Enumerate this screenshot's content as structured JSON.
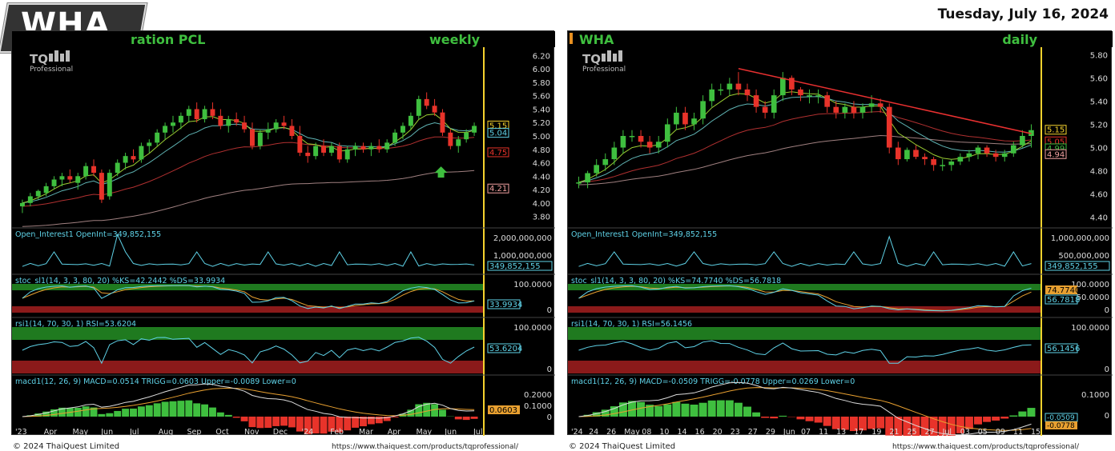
{
  "header": {
    "date": "Tuesday, July 16, 2024",
    "badge": "WHA"
  },
  "colors": {
    "up": "#3fbf3f",
    "down": "#e8332a",
    "ema_fast": "#9acd32",
    "ema_mid": "#5fb3b3",
    "ema_slow": "#b03030",
    "ema_long": "#a08080",
    "trend": "#e83030",
    "osc_line": "#5fd3e8",
    "signal": "#e8a030",
    "green_zone": "#1f7a1f",
    "red_zone": "#8b1a1a"
  },
  "weekly": {
    "title_left": "ration PCL",
    "title_right": "weekly",
    "logo": "TQ",
    "logo_sub": "Professional",
    "price_ticks": [
      "6.20",
      "6.00",
      "5.80",
      "5.60",
      "5.40",
      "5.20",
      "5.00",
      "4.80",
      "4.60",
      "4.40",
      "4.20",
      "4.00",
      "3.80"
    ],
    "price_tags": [
      {
        "v": "5.15",
        "c": "#f5d22e"
      },
      {
        "v": "5.04",
        "c": "#5fd3e8"
      },
      {
        "v": "4.75",
        "c": "#e8332a"
      },
      {
        "v": "4.21",
        "c": "#f0a0a0"
      }
    ],
    "oi_label": "Open_Interest1 OpenInt=349,852,155",
    "oi_ticks": [
      "2,000,000,000",
      "1,000,000,000"
    ],
    "oi_tag": "349,852,155",
    "stoc_label": "stoc_sl1(14, 3, 3, 80, 20) %KS=42.2442 %DS=33.9934",
    "stoc_ticks": [
      "100.0000",
      "0"
    ],
    "stoc_tag": "33.9934",
    "rsi_label": "rsi1(14, 70, 30, 1) RSI=53.6204",
    "rsi_ticks": [
      "100.0000",
      "0"
    ],
    "rsi_tag": "53.6204",
    "macd_label": "macd1(12, 26, 9) MACD=0.0514 TRIGG=0.0603 Upper=-0.0089 Lower=0",
    "macd_ticks": [
      "0.2000",
      "0.1000",
      "0"
    ],
    "macd_tag": "0.0603",
    "x_labels": [
      "'23",
      "Apr",
      "May",
      "Jun",
      "Jul",
      "Aug",
      "Sep",
      "Oct",
      "Nov",
      "Dec",
      "'24",
      "Feb",
      "Mar",
      "Apr",
      "May",
      "Jun",
      "Jul"
    ],
    "copyright": "© 2024 ThaiQuest Limited",
    "url": "https://www.thaiquest.com/products/tqprofessional/"
  },
  "daily": {
    "title_left": "WHA",
    "title_right": "daily",
    "logo": "TQ",
    "logo_sub": "Professional",
    "price_ticks": [
      "5.80",
      "5.60",
      "5.40",
      "5.20",
      "5.00",
      "4.80",
      "4.60",
      "4.40"
    ],
    "price_tags": [
      {
        "v": "5.15",
        "c": "#f5d22e"
      },
      {
        "v": "5.05",
        "c": "#e8332a"
      },
      {
        "v": "4.99",
        "c": "#3fbf3f"
      },
      {
        "v": "4.94",
        "c": "#f0a0a0"
      }
    ],
    "oi_label": "Open_Interest1 OpenInt=349,852,155",
    "oi_ticks": [
      "1,000,000,000",
      "500,000,000"
    ],
    "oi_tag": "349,852,155",
    "stoc_label": "stoc_sl1(14, 3, 3, 80, 20) %KS=74.7740 %DS=56.7818",
    "stoc_ticks": [
      "100.0000",
      "50.0000",
      "0"
    ],
    "stoc_tag1": "74.7740",
    "stoc_tag2": "56.7818",
    "rsi_label": "rsi1(14, 70, 30, 1) RSI=56.1456",
    "rsi_ticks": [
      "100.0000",
      "0"
    ],
    "rsi_tag": "56.1456",
    "macd_label": "macd1(12, 26, 9) MACD=-0.0509 TRIGG=-0.0778 Upper=0.0269 Lower=0",
    "macd_ticks": [
      "0.1000",
      "0"
    ],
    "macd_tag1": "-0.0509",
    "macd_tag2": "-0.0778",
    "x_labels": [
      "'24",
      "24",
      "26",
      "May",
      "08",
      "10",
      "14",
      "16",
      "20",
      "23",
      "27",
      "29",
      "Jun",
      "07",
      "11",
      "13",
      "17",
      "19",
      "21",
      "25",
      "27",
      "Jul",
      "03",
      "05",
      "09",
      "11",
      "15"
    ],
    "copyright": "© 2024 ThaiQuest Limited",
    "url": "https://www.thaiquest.com/products/tqprofessional/"
  },
  "chart_data": [
    {
      "type": "candlestick",
      "title": "ration PCL weekly",
      "ylim": [
        3.7,
        6.3
      ],
      "ohlc": [
        [
          3.95,
          4.05,
          3.85,
          4.0
        ],
        [
          4.0,
          4.15,
          3.95,
          4.1
        ],
        [
          4.1,
          4.2,
          4.05,
          4.18
        ],
        [
          4.15,
          4.3,
          4.1,
          4.25
        ],
        [
          4.25,
          4.4,
          4.2,
          4.35
        ],
        [
          4.35,
          4.45,
          4.25,
          4.4
        ],
        [
          4.4,
          4.5,
          4.3,
          4.35
        ],
        [
          4.3,
          4.45,
          4.2,
          4.4
        ],
        [
          4.4,
          4.6,
          4.35,
          4.55
        ],
        [
          4.55,
          4.65,
          4.4,
          4.45
        ],
        [
          4.45,
          4.5,
          4.0,
          4.05
        ],
        [
          4.1,
          4.5,
          4.05,
          4.45
        ],
        [
          4.45,
          4.65,
          4.4,
          4.6
        ],
        [
          4.6,
          4.75,
          4.5,
          4.7
        ],
        [
          4.7,
          4.8,
          4.6,
          4.65
        ],
        [
          4.65,
          4.9,
          4.6,
          4.85
        ],
        [
          4.85,
          4.95,
          4.75,
          4.9
        ],
        [
          4.9,
          5.1,
          4.85,
          5.05
        ],
        [
          5.05,
          5.2,
          4.95,
          5.15
        ],
        [
          5.15,
          5.3,
          5.05,
          5.2
        ],
        [
          5.2,
          5.35,
          5.1,
          5.3
        ],
        [
          5.3,
          5.45,
          5.2,
          5.4
        ],
        [
          5.4,
          5.5,
          5.2,
          5.25
        ],
        [
          5.25,
          5.45,
          5.2,
          5.4
        ],
        [
          5.4,
          5.5,
          5.25,
          5.3
        ],
        [
          5.3,
          5.4,
          5.1,
          5.15
        ],
        [
          5.15,
          5.3,
          5.05,
          5.25
        ],
        [
          5.25,
          5.35,
          5.15,
          5.2
        ],
        [
          5.2,
          5.3,
          5.05,
          5.1
        ],
        [
          5.1,
          5.2,
          4.8,
          4.85
        ],
        [
          4.85,
          5.1,
          4.8,
          5.05
        ],
        [
          5.05,
          5.2,
          4.95,
          5.1
        ],
        [
          5.1,
          5.25,
          5.05,
          5.2
        ],
        [
          5.2,
          5.3,
          5.1,
          5.15
        ],
        [
          5.15,
          5.25,
          4.95,
          5.0
        ],
        [
          5.0,
          5.15,
          4.7,
          4.75
        ],
        [
          4.75,
          4.85,
          4.6,
          4.7
        ],
        [
          4.7,
          4.9,
          4.65,
          4.85
        ],
        [
          4.85,
          4.95,
          4.7,
          4.75
        ],
        [
          4.75,
          4.9,
          4.7,
          4.85
        ],
        [
          4.85,
          4.9,
          4.6,
          4.65
        ],
        [
          4.65,
          4.85,
          4.6,
          4.8
        ],
        [
          4.8,
          4.9,
          4.7,
          4.85
        ],
        [
          4.85,
          4.9,
          4.75,
          4.8
        ],
        [
          4.8,
          4.9,
          4.7,
          4.85
        ],
        [
          4.85,
          4.95,
          4.75,
          4.8
        ],
        [
          4.8,
          4.95,
          4.75,
          4.9
        ],
        [
          4.9,
          5.1,
          4.85,
          5.05
        ],
        [
          5.05,
          5.2,
          4.95,
          5.15
        ],
        [
          5.15,
          5.35,
          5.1,
          5.3
        ],
        [
          5.3,
          5.6,
          5.25,
          5.55
        ],
        [
          5.55,
          5.65,
          5.4,
          5.45
        ],
        [
          5.45,
          5.55,
          5.3,
          5.35
        ],
        [
          5.35,
          5.4,
          5.0,
          5.05
        ],
        [
          5.05,
          5.1,
          4.8,
          4.85
        ],
        [
          4.85,
          5.0,
          4.75,
          4.95
        ],
        [
          4.95,
          5.1,
          4.9,
          5.05
        ],
        [
          5.05,
          5.2,
          5.0,
          5.15
        ]
      ]
    },
    {
      "type": "candlestick",
      "title": "WHA daily",
      "ylim": [
        4.35,
        5.85
      ],
      "ohlc": [
        [
          4.7,
          4.75,
          4.65,
          4.7
        ],
        [
          4.7,
          4.8,
          4.65,
          4.78
        ],
        [
          4.78,
          4.9,
          4.75,
          4.85
        ],
        [
          4.85,
          4.95,
          4.8,
          4.9
        ],
        [
          4.9,
          5.05,
          4.85,
          5.0
        ],
        [
          5.0,
          5.15,
          4.95,
          5.1
        ],
        [
          5.1,
          5.15,
          5.05,
          5.1
        ],
        [
          5.1,
          5.15,
          5.0,
          5.05
        ],
        [
          5.05,
          5.1,
          4.95,
          5.0
        ],
        [
          5.0,
          5.1,
          4.95,
          5.05
        ],
        [
          5.05,
          5.25,
          5.0,
          5.2
        ],
        [
          5.2,
          5.35,
          5.15,
          5.3
        ],
        [
          5.3,
          5.35,
          5.15,
          5.2
        ],
        [
          5.2,
          5.3,
          5.15,
          5.25
        ],
        [
          5.25,
          5.45,
          5.2,
          5.4
        ],
        [
          5.4,
          5.55,
          5.35,
          5.5
        ],
        [
          5.5,
          5.55,
          5.45,
          5.5
        ],
        [
          5.5,
          5.6,
          5.45,
          5.55
        ],
        [
          5.55,
          5.65,
          5.45,
          5.5
        ],
        [
          5.5,
          5.55,
          5.4,
          5.45
        ],
        [
          5.45,
          5.5,
          5.3,
          5.35
        ],
        [
          5.35,
          5.4,
          5.25,
          5.3
        ],
        [
          5.3,
          5.5,
          5.25,
          5.45
        ],
        [
          5.45,
          5.65,
          5.4,
          5.6
        ],
        [
          5.6,
          5.62,
          5.45,
          5.5
        ],
        [
          5.5,
          5.52,
          5.4,
          5.45
        ],
        [
          5.45,
          5.5,
          5.38,
          5.45
        ],
        [
          5.45,
          5.5,
          5.38,
          5.45
        ],
        [
          5.45,
          5.48,
          5.3,
          5.35
        ],
        [
          5.35,
          5.4,
          5.25,
          5.3
        ],
        [
          5.3,
          5.38,
          5.25,
          5.35
        ],
        [
          5.35,
          5.4,
          5.25,
          5.3
        ],
        [
          5.3,
          5.38,
          5.25,
          5.35
        ],
        [
          5.35,
          5.45,
          5.3,
          5.38
        ],
        [
          5.38,
          5.42,
          5.3,
          5.35
        ],
        [
          5.35,
          5.38,
          4.95,
          5.0
        ],
        [
          5.0,
          5.05,
          4.85,
          4.9
        ],
        [
          4.9,
          5.0,
          4.88,
          4.98
        ],
        [
          4.98,
          5.02,
          4.9,
          4.92
        ],
        [
          4.92,
          4.95,
          4.85,
          4.9
        ],
        [
          4.9,
          4.92,
          4.8,
          4.85
        ],
        [
          4.85,
          4.9,
          4.8,
          4.85
        ],
        [
          4.85,
          4.9,
          4.8,
          4.88
        ],
        [
          4.88,
          4.95,
          4.85,
          4.92
        ],
        [
          4.92,
          4.98,
          4.88,
          4.95
        ],
        [
          4.95,
          5.02,
          4.9,
          5.0
        ],
        [
          5.0,
          5.02,
          4.92,
          4.95
        ],
        [
          4.95,
          4.98,
          4.88,
          4.92
        ],
        [
          4.92,
          4.98,
          4.88,
          4.95
        ],
        [
          4.95,
          5.05,
          4.92,
          5.02
        ],
        [
          5.02,
          5.15,
          5.0,
          5.1
        ],
        [
          5.1,
          5.2,
          5.0,
          5.15
        ]
      ]
    }
  ]
}
